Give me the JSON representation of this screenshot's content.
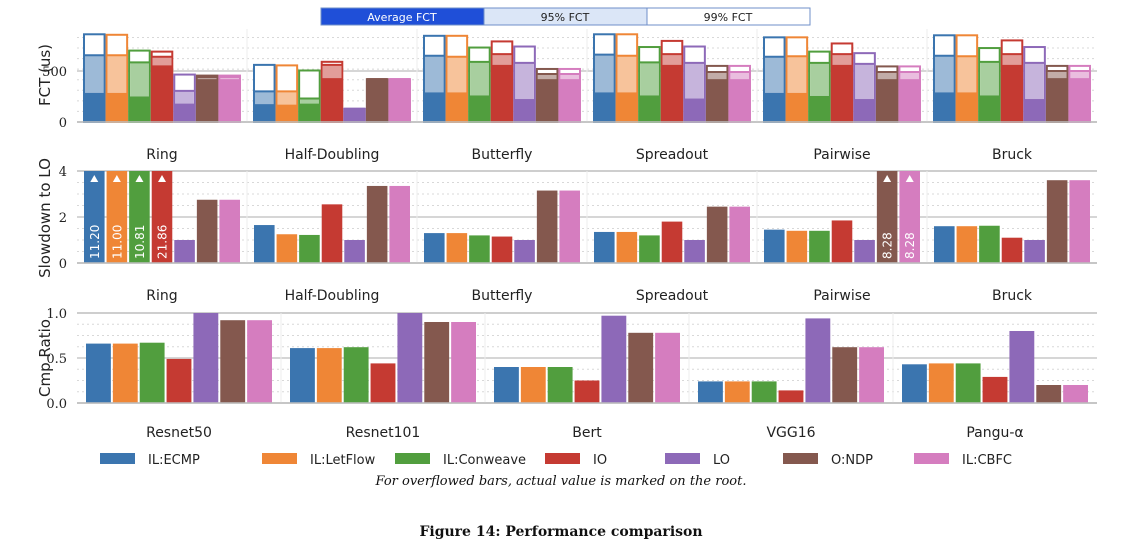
{
  "figure": {
    "caption": "Figure 14: Performance comparison",
    "note": "For overflowed bars, actual value is marked on the root."
  },
  "legend_top": [
    "Average FCT",
    "95% FCT",
    "99% FCT"
  ],
  "series": [
    "IL:ECMP",
    "IL:LetFlow",
    "IL:Conweave",
    "IO",
    "LO",
    "O:NDP",
    "IL:CBFC"
  ],
  "colors": {
    "series": [
      "#3b75af",
      "#ef8636",
      "#519e3e",
      "#c53a32",
      "#8d69b8",
      "#84584e",
      "#d57dbf"
    ],
    "legend_avg_fill": "#1f4fd8",
    "legend_95_fill": "#dbe6f7",
    "legend_99_fill": "#ffffff",
    "legend_border": "#6f8fc8"
  },
  "chart_data": [
    {
      "type": "bar",
      "subtype": "stacked-percentile",
      "ylabel": "FCT (us)",
      "ylim": [
        0,
        900
      ],
      "yticks": [
        0,
        500
      ],
      "grid": true,
      "categories": [
        "Ring",
        "Half-Doubling",
        "Butterfly",
        "Spreadout",
        "Pairwise",
        "Bruck"
      ],
      "series": [
        {
          "name": "IL:ECMP",
          "avg": [
            285,
            175,
            290,
            290,
            285,
            290
          ],
          "p95": [
            655,
            300,
            650,
            660,
            640,
            650
          ],
          "p99": [
            860,
            560,
            845,
            860,
            830,
            850
          ]
        },
        {
          "name": "IL:LetFlow",
          "avg": [
            285,
            170,
            290,
            290,
            285,
            290
          ],
          "p95": [
            655,
            300,
            640,
            650,
            645,
            645
          ],
          "p99": [
            855,
            555,
            845,
            860,
            830,
            850
          ]
        },
        {
          "name": "IL:Conweave",
          "avg": [
            250,
            180,
            260,
            260,
            255,
            260
          ],
          "p95": [
            585,
            230,
            590,
            585,
            580,
            590
          ],
          "p99": [
            700,
            505,
            730,
            735,
            690,
            725
          ]
        },
        {
          "name": "IO",
          "avg": [
            555,
            430,
            560,
            560,
            560,
            560
          ],
          "p95": [
            640,
            560,
            665,
            665,
            665,
            665
          ],
          "p99": [
            690,
            590,
            790,
            795,
            770,
            800
          ]
        },
        {
          "name": "LO",
          "avg": [
            180,
            130,
            225,
            230,
            225,
            225
          ],
          "p95": [
            305,
            130,
            580,
            580,
            570,
            580
          ],
          "p99": [
            465,
            130,
            740,
            740,
            675,
            735
          ]
        },
        {
          "name": "O:NDP",
          "avg": [
            420,
            420,
            420,
            420,
            420,
            430
          ],
          "p95": [
            440,
            420,
            470,
            490,
            490,
            500
          ],
          "p99": [
            455,
            420,
            520,
            550,
            545,
            550
          ]
        },
        {
          "name": "IL:CBFC",
          "avg": [
            420,
            420,
            420,
            420,
            420,
            430
          ],
          "p95": [
            440,
            420,
            470,
            490,
            490,
            500
          ],
          "p99": [
            455,
            420,
            520,
            550,
            545,
            550
          ]
        }
      ]
    },
    {
      "type": "bar",
      "ylabel": "Slowdown to LO",
      "ylim": [
        0,
        4
      ],
      "yticks": [
        0,
        2,
        4
      ],
      "grid": true,
      "categories": [
        "Ring",
        "Half-Doubling",
        "Butterfly",
        "Spreadout",
        "Pairwise",
        "Bruck"
      ],
      "series": [
        {
          "name": "IL:ECMP",
          "values": [
            11.2,
            1.65,
            1.3,
            1.35,
            1.45,
            1.6
          ]
        },
        {
          "name": "IL:LetFlow",
          "values": [
            11.0,
            1.25,
            1.3,
            1.35,
            1.4,
            1.6
          ]
        },
        {
          "name": "IL:Conweave",
          "values": [
            10.81,
            1.22,
            1.2,
            1.2,
            1.4,
            1.62
          ]
        },
        {
          "name": "IO",
          "values": [
            21.86,
            2.55,
            1.15,
            1.8,
            1.85,
            1.1
          ]
        },
        {
          "name": "LO",
          "values": [
            1.0,
            1.0,
            1.0,
            1.0,
            1.0,
            1.0
          ]
        },
        {
          "name": "O:NDP",
          "values": [
            2.75,
            3.35,
            3.15,
            2.45,
            8.28,
            3.6
          ]
        },
        {
          "name": "IL:CBFC",
          "values": [
            2.75,
            3.35,
            3.15,
            2.45,
            8.28,
            3.6
          ]
        }
      ],
      "overflow_labels": [
        {
          "category": "Ring",
          "series": "IL:ECMP",
          "label": "11.20"
        },
        {
          "category": "Ring",
          "series": "IL:LetFlow",
          "label": "11.00"
        },
        {
          "category": "Ring",
          "series": "IL:Conweave",
          "label": "10.81"
        },
        {
          "category": "Ring",
          "series": "IO",
          "label": "21.86"
        },
        {
          "category": "Pairwise",
          "series": "O:NDP",
          "label": "8.28"
        },
        {
          "category": "Pairwise",
          "series": "IL:CBFC",
          "label": "8.28"
        }
      ]
    },
    {
      "type": "bar",
      "ylabel": "Cmp Ratio",
      "ylim": [
        0,
        1.0
      ],
      "yticks": [
        "0.0",
        "0.5",
        "1.0"
      ],
      "grid": true,
      "categories": [
        "Resnet50",
        "Resnet101",
        "Bert",
        "VGG16",
        "Pangu-α"
      ],
      "series": [
        {
          "name": "IL:ECMP",
          "values": [
            0.66,
            0.61,
            0.4,
            0.24,
            0.43
          ]
        },
        {
          "name": "IL:LetFlow",
          "values": [
            0.66,
            0.61,
            0.4,
            0.24,
            0.44
          ]
        },
        {
          "name": "IL:Conweave",
          "values": [
            0.67,
            0.62,
            0.4,
            0.24,
            0.44
          ]
        },
        {
          "name": "IO",
          "values": [
            0.49,
            0.44,
            0.25,
            0.14,
            0.29
          ]
        },
        {
          "name": "LO",
          "values": [
            1.0,
            1.0,
            0.97,
            0.94,
            0.8
          ]
        },
        {
          "name": "O:NDP",
          "values": [
            0.92,
            0.9,
            0.78,
            0.62,
            0.2
          ]
        },
        {
          "name": "IL:CBFC",
          "values": [
            0.92,
            0.9,
            0.78,
            0.62,
            0.2
          ]
        }
      ]
    }
  ]
}
